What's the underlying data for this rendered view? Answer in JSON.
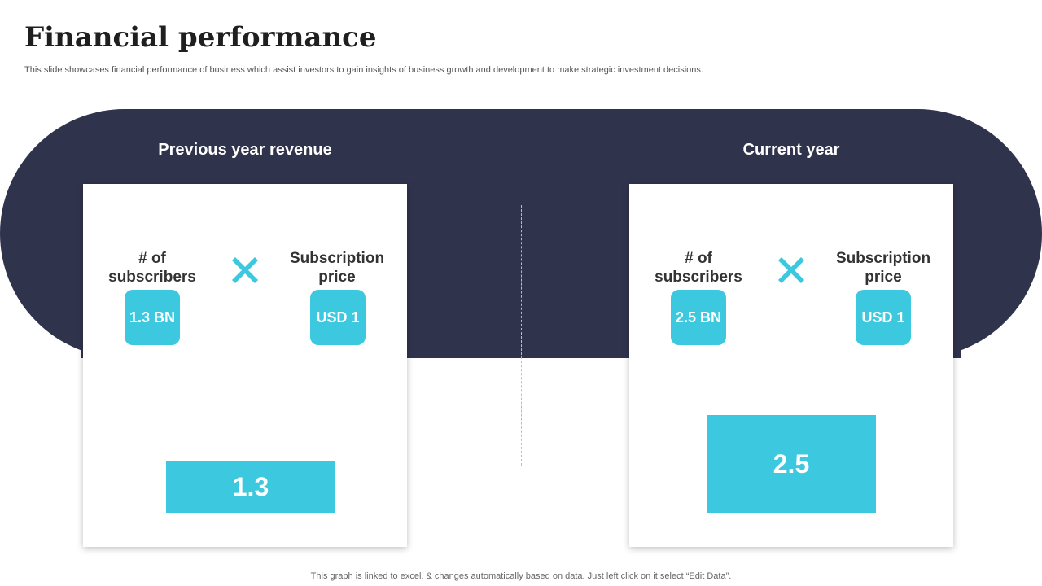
{
  "header": {
    "title": "Financial performance",
    "subtitle": "This slide showcases financial performance of business which assist investors to gain insights of business growth and development to make strategic investment decisions."
  },
  "colors": {
    "band": "#30334c",
    "accent": "#3cc8de",
    "card": "#ffffff"
  },
  "columns": [
    {
      "title": "Previous year revenue",
      "subscribers_label": "# of subscribers",
      "price_label": "Subscription price",
      "subscribers_value": "1.3 BN",
      "price_value": "USD 1",
      "operator_icon": "multiply-icon",
      "result": "1.3",
      "result_value": 1.3
    },
    {
      "title": "Current year",
      "subscribers_label": "# of subscribers",
      "price_label": "Subscription price",
      "subscribers_value": "2.5 BN",
      "price_value": "USD 1",
      "operator_icon": "multiply-icon",
      "result": "2.5",
      "result_value": 2.5
    }
  ],
  "footer": {
    "note": "This graph is linked to excel, & changes automatically based on data. Just left click on it select “Edit Data”."
  }
}
